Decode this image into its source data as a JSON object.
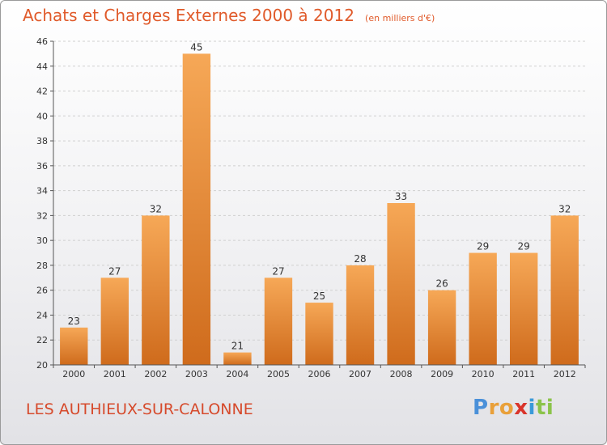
{
  "title": "Achats et Charges Externes 2000 à 2012",
  "unit_note": "(en milliers d'€)",
  "commune": "LES AUTHIEUX-SUR-CALONNE",
  "logo": {
    "text": "Proxiti",
    "letter_colors": [
      "#4a90d9",
      "#e9a03a",
      "#e9a03a",
      "#d9342b",
      "#3a9ad9",
      "#8bc34a",
      "#8bc34a"
    ]
  },
  "colors": {
    "title": "#e05a2a",
    "commune": "#d64a2c",
    "bar_light": "#f6a857",
    "bar_dark": "#cf6b1c",
    "axis": "#555555",
    "grid": "#d0d0d0"
  },
  "chart_data": {
    "type": "bar",
    "title": "Achats et Charges Externes 2000 à 2012",
    "xlabel": "",
    "ylabel": "",
    "categories": [
      "2000",
      "2001",
      "2002",
      "2003",
      "2004",
      "2005",
      "2006",
      "2007",
      "2008",
      "2009",
      "2010",
      "2011",
      "2012"
    ],
    "values": [
      23,
      27,
      32,
      45,
      21,
      27,
      25,
      28,
      33,
      26,
      29,
      29,
      32
    ],
    "ylim": [
      20,
      46
    ],
    "yticks": [
      20,
      22,
      24,
      26,
      28,
      30,
      32,
      34,
      36,
      38,
      40,
      42,
      44,
      46
    ],
    "grid": "horizontal dashed",
    "legend": "none"
  }
}
